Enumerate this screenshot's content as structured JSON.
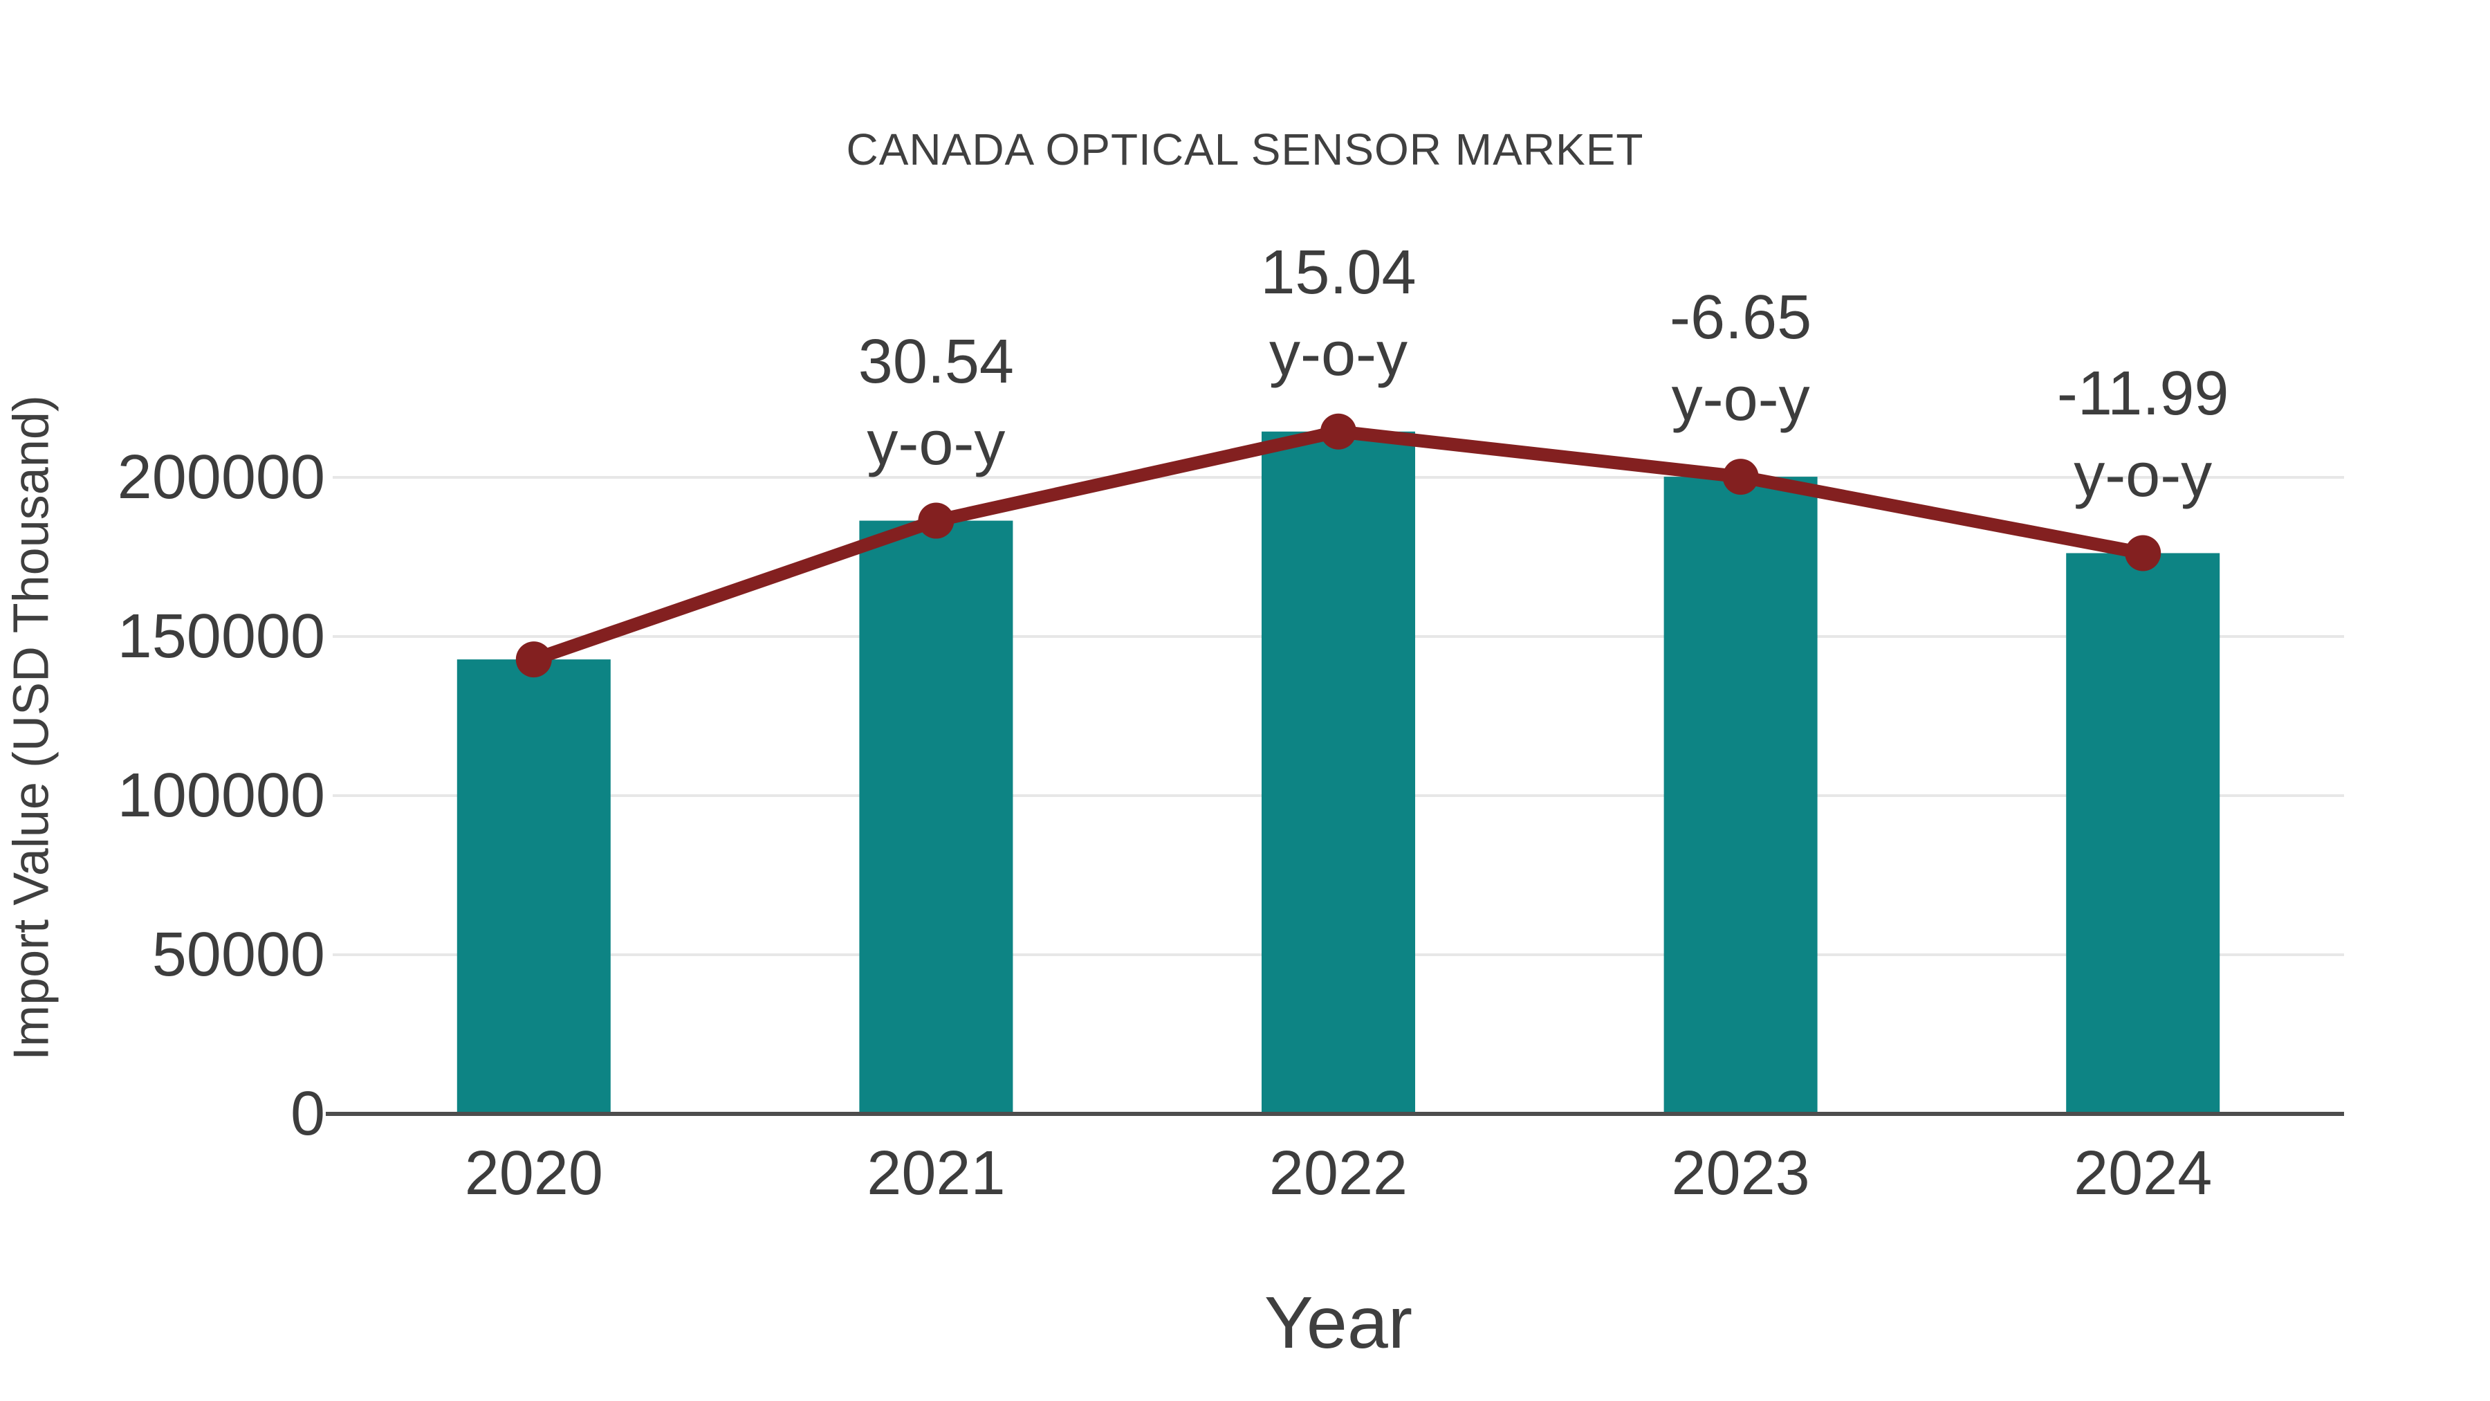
{
  "title": "CANADA OPTICAL SENSOR MARKET",
  "x_axis_title": "Year",
  "y_axis_title": "Import Value (USD Thousand)",
  "colors": {
    "bar": "#0d8484",
    "line": "#832020",
    "marker": "#832020",
    "text": "#3d3d3d",
    "title_text": "#404040",
    "grid": "#e7e7e7",
    "axis": "#4d4d4d",
    "background": "#ffffff"
  },
  "chart_data": {
    "type": "bar",
    "title": "CANADA OPTICAL SENSOR MARKET",
    "xlabel": "Year",
    "ylabel": "Import Value (USD Thousand)",
    "categories": [
      "2020",
      "2021",
      "2022",
      "2023",
      "2024"
    ],
    "series": [
      {
        "name": "Import Value (USD Thousand)",
        "type": "bar",
        "values": [
          142800,
          186400,
          214400,
          200200,
          176200
        ]
      },
      {
        "name": "y-o-y",
        "type": "line",
        "values": [
          null,
          30.54,
          15.04,
          -6.65,
          -11.99
        ]
      }
    ],
    "annotations": [
      {
        "category_index": 1,
        "text": "30.54",
        "subtext": "y-o-y"
      },
      {
        "category_index": 2,
        "text": "15.04",
        "subtext": "y-o-y"
      },
      {
        "category_index": 3,
        "text": "-6.65",
        "subtext": "y-o-y"
      },
      {
        "category_index": 4,
        "text": "-11.99",
        "subtext": "y-o-y"
      }
    ],
    "yticks": [
      0,
      50000,
      100000,
      150000,
      200000
    ],
    "ytick_labels": [
      "0",
      "50000",
      "100000",
      "150000",
      "200000"
    ],
    "ylim": [
      0,
      230000
    ],
    "grid": true,
    "legend": false
  }
}
